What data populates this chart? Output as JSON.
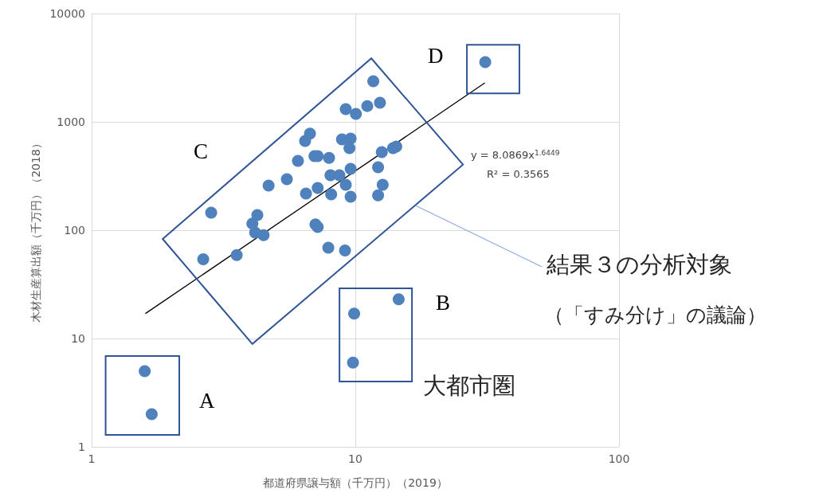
{
  "chart_data": {
    "type": "scatter",
    "xlabel": "都道府県譲与額（千万円）（2019）",
    "ylabel": "木材生産算出額（千万円）（2018）",
    "log": "xy",
    "xlim": [
      1,
      100
    ],
    "xticks": [
      1,
      10,
      100
    ],
    "ylim": [
      1,
      10000
    ],
    "yticks": [
      1,
      10,
      100,
      1000,
      10000
    ],
    "grid": true,
    "marker": "circle",
    "annotations": [
      "A",
      "B",
      "C",
      "D",
      "y = 8.0869x$^{1.6449}$",
      "R² = 0.3565",
      "結果３の分析対象",
      "（「すみ分け」の議論）",
      "大都市圏"
    ],
    "series": [
      {
        "color": "#4f81bd",
        "x": [
          1.59,
          1.69,
          9.8,
          9.9,
          14.6,
          31.1,
          2.65,
          2.84,
          3.55,
          4.07,
          4.25,
          4.17,
          4.49,
          4.69,
          5.5,
          6.06,
          6.45,
          6.73,
          6.5,
          7.0,
          7.2,
          7.06,
          7.2,
          7.2,
          7.95,
          7.9,
          8.05,
          8.1,
          8.7,
          8.9,
          9.14,
          9.2,
          9.2,
          9.6,
          9.5,
          9.6,
          9.6,
          10.05,
          11.1,
          11.7,
          12.2,
          12.2,
          12.4,
          12.6,
          12.7,
          13.9,
          14.3
        ],
        "values": [
          5.0,
          2.0,
          6.0,
          17,
          23,
          3560,
          54,
          145,
          59,
          115,
          138,
          95,
          90,
          258,
          296,
          436,
          666,
          778,
          218,
          483,
          483,
          113,
          107,
          245,
          465,
          69,
          322,
          214,
          322,
          689,
          65,
          262,
          1310,
          701,
          572,
          368,
          204,
          1185,
          1400,
          2370,
          210,
          381,
          1500,
          526,
          262,
          572,
          592
        ]
      },
      {
        "type": "line",
        "color": "#000000",
        "marker": "none",
        "x": [
          1.6,
          31
        ],
        "values": [
          17,
          2290
        ]
      }
    ]
  }
}
